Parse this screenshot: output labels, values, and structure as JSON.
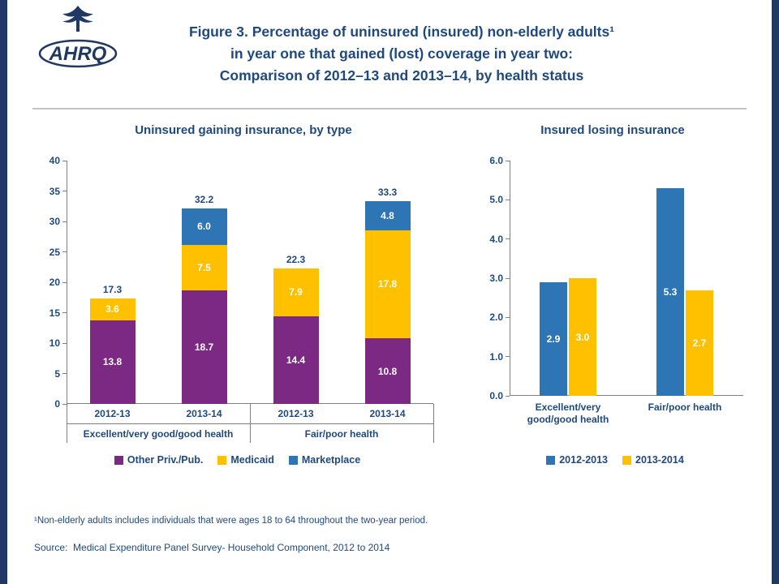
{
  "page": {
    "title_lines": [
      "Figure 3. Percentage of uninsured (insured) non-elderly adults¹",
      "in year one that gained (lost) coverage in year two:",
      "Comparison of 2012–13 and 2013–14, by health status"
    ],
    "footnote": "¹Non-elderly adults includes individuals that were ages 18 to 64 throughout the two-year period.",
    "source": "Source:  Medical Expenditure Panel Survey- Household Component, 2012 to 2014"
  },
  "logo": {
    "text": "AHRQ"
  },
  "colors": {
    "purple": "#7B2982",
    "gold": "#FFC000",
    "blue": "#2E75B6",
    "text_blue": "#1F497D",
    "edge_navy": "#1F3864",
    "axis_gray": "#808080"
  },
  "chart_data": [
    {
      "type": "bar",
      "variant": "stacked",
      "title": "Uninsured gaining insurance, by type",
      "ylim": [
        0,
        40
      ],
      "ytick_step": 5,
      "ytick_decimals": 0,
      "grid": false,
      "legend_position": "bottom",
      "groups": [
        "Excellent/very good/good health",
        "Fair/poor health"
      ],
      "categories": [
        "2012-13",
        "2013-14",
        "2012-13",
        "2013-14"
      ],
      "series": [
        {
          "name": "Other Priv./Pub.",
          "color_key": "purple",
          "values": [
            13.8,
            18.7,
            14.4,
            10.8
          ]
        },
        {
          "name": "Medicaid",
          "color_key": "gold",
          "values": [
            3.6,
            7.5,
            7.9,
            17.8
          ]
        },
        {
          "name": "Marketplace",
          "color_key": "blue",
          "values": [
            0,
            6.0,
            0,
            4.8
          ]
        }
      ],
      "totals": [
        17.3,
        32.2,
        22.3,
        33.3
      ]
    },
    {
      "type": "bar",
      "variant": "grouped",
      "title": "Insured losing insurance",
      "ylim": [
        0,
        6.0
      ],
      "ytick_step": 1,
      "ytick_decimals": 1,
      "grid": false,
      "legend_position": "bottom",
      "categories": [
        "Excellent/very good/good health",
        "Fair/poor health"
      ],
      "series": [
        {
          "name": "2012-2013",
          "color_key": "blue",
          "values": [
            2.9,
            5.3
          ]
        },
        {
          "name": "2013-2014",
          "color_key": "gold",
          "values": [
            3.0,
            2.7
          ]
        }
      ]
    }
  ]
}
